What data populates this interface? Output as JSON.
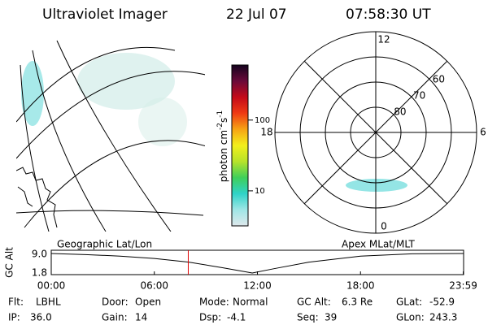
{
  "header": {
    "title": "Ultraviolet Imager",
    "date": "22 Jul 07",
    "time": "07:58:30 UT"
  },
  "colorbar": {
    "label": "photon cm",
    "exp1": "-2",
    "unit2": "s",
    "exp2": "-1",
    "log": true,
    "clim": [
      3.2,
      600
    ],
    "ticks": [
      10,
      100
    ],
    "colors": [
      "#dfe8ec",
      "#9fe6e6",
      "#2fd3c8",
      "#3fcf5a",
      "#b7e32a",
      "#f3ef1c",
      "#f7a414",
      "#ef3a14",
      "#c40a1a",
      "#6a0a3a",
      "#14041e"
    ]
  },
  "polar": {
    "mlt_labels": [
      {
        "value": 12,
        "label": "12"
      },
      {
        "value": 18,
        "label": "18"
      },
      {
        "value": 6,
        "label": "6"
      },
      {
        "value": 0,
        "label": "0"
      }
    ],
    "mlat_rings": [
      80,
      70,
      60
    ]
  },
  "timeline": {
    "left_label": "Geographic Lat/Lon",
    "right_label": "Apex MLat/MLT",
    "axis_label": "GC Alt",
    "yticks": [
      {
        "value": 9,
        "label": "9.0"
      },
      {
        "value": 1.8,
        "label": "1.8"
      }
    ],
    "xticks": [
      {
        "value": 0,
        "label": "00:00"
      },
      {
        "value": 6,
        "label": "06:00"
      },
      {
        "value": 12,
        "label": "12:00"
      },
      {
        "value": 18,
        "label": "18:00"
      },
      {
        "value": 23.98,
        "label": "23:59"
      }
    ],
    "hours": [
      0,
      2,
      4,
      6,
      8,
      10,
      11.7,
      13,
      15,
      18,
      21,
      24
    ],
    "alt": [
      9.3,
      8.9,
      8.3,
      7.4,
      6.0,
      3.8,
      1.8,
      3.5,
      6.0,
      8.3,
      9.2,
      9.3
    ],
    "current": 7.975
  },
  "footer": [
    [
      {
        "label": "Flt:",
        "value": "LBHL"
      },
      {
        "label": "Door:",
        "value": "Open"
      },
      {
        "label": "Mode:",
        "value": "Normal"
      },
      {
        "label": "GC Alt:",
        "value": "6.3 Re"
      },
      {
        "label": "GLat:",
        "value": "-52.9"
      }
    ],
    [
      {
        "label": "IP:",
        "value": "36.0"
      },
      {
        "label": "Gain:",
        "value": "14"
      },
      {
        "label": "Dsp:",
        "value": "-4.1"
      },
      {
        "label": "Seq:",
        "value": "39"
      },
      {
        "label": "GLon:",
        "value": "243.3"
      }
    ]
  ]
}
